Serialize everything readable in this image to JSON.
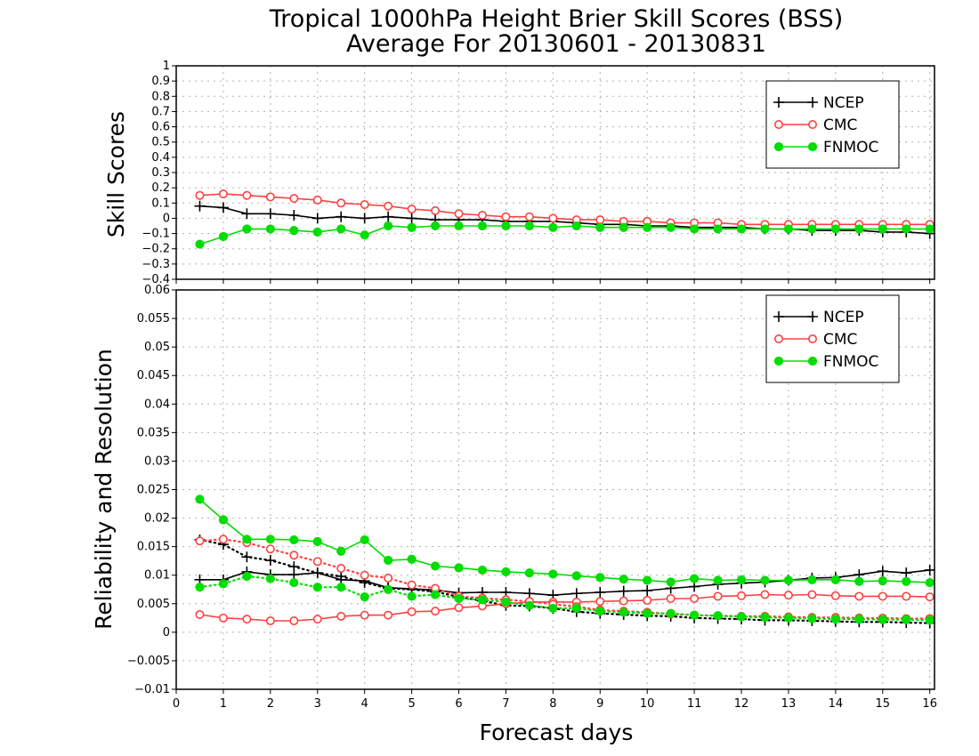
{
  "figure": {
    "title_line1": "Tropical 1000hPa Height Brier Skill Scores (BSS)",
    "title_line2": "Average For 20130601 - 20130831",
    "xlabel": "Forecast days"
  },
  "colors": {
    "NCEP": "#000000",
    "CMC": "#ff4040",
    "FNMOC": "#00dd00",
    "grid": "#b0b0b0"
  },
  "chart_data": [
    {
      "type": "line",
      "panel": "top",
      "ylabel": "Skill Scores",
      "xlim": [
        0,
        16.1
      ],
      "ylim": [
        -0.4,
        1
      ],
      "x_ticks": [
        0,
        1,
        2,
        3,
        4,
        5,
        6,
        7,
        8,
        9,
        10,
        11,
        12,
        13,
        14,
        15,
        16
      ],
      "y_ticks": [
        -0.4,
        -0.3,
        -0.2,
        -0.1,
        0,
        0.1,
        0.2,
        0.3,
        0.4,
        0.5,
        0.6,
        0.7,
        0.8,
        0.9,
        1
      ],
      "grid": true,
      "legend_position": "top-right",
      "x": [
        0.5,
        1,
        1.5,
        2,
        2.5,
        3,
        3.5,
        4,
        4.5,
        5,
        5.5,
        6,
        6.5,
        7,
        7.5,
        8,
        8.5,
        9,
        9.5,
        10,
        10.5,
        11,
        11.5,
        12,
        12.5,
        13,
        13.5,
        14,
        14.5,
        15,
        15.5,
        16
      ],
      "series": [
        {
          "name": "NCEP",
          "marker": "plus",
          "line": "solid",
          "values": [
            0.08,
            0.07,
            0.03,
            0.03,
            0.02,
            0.0,
            0.01,
            0.0,
            0.01,
            0.0,
            -0.01,
            -0.01,
            -0.01,
            -0.02,
            -0.02,
            -0.02,
            -0.03,
            -0.04,
            -0.04,
            -0.05,
            -0.05,
            -0.06,
            -0.06,
            -0.06,
            -0.07,
            -0.07,
            -0.08,
            -0.08,
            -0.08,
            -0.09,
            -0.09,
            -0.1
          ]
        },
        {
          "name": "CMC",
          "marker": "open-circle",
          "line": "solid",
          "values": [
            0.15,
            0.16,
            0.15,
            0.14,
            0.13,
            0.12,
            0.1,
            0.09,
            0.08,
            0.06,
            0.05,
            0.03,
            0.02,
            0.01,
            0.01,
            0.0,
            -0.01,
            -0.01,
            -0.02,
            -0.02,
            -0.03,
            -0.03,
            -0.03,
            -0.04,
            -0.04,
            -0.04,
            -0.04,
            -0.04,
            -0.04,
            -0.04,
            -0.04,
            -0.04
          ]
        },
        {
          "name": "FNMOC",
          "marker": "filled-circle",
          "line": "solid",
          "values": [
            -0.17,
            -0.12,
            -0.07,
            -0.07,
            -0.08,
            -0.09,
            -0.07,
            -0.11,
            -0.05,
            -0.06,
            -0.05,
            -0.05,
            -0.05,
            -0.05,
            -0.05,
            -0.06,
            -0.05,
            -0.06,
            -0.06,
            -0.06,
            -0.06,
            -0.07,
            -0.07,
            -0.07,
            -0.07,
            -0.07,
            -0.07,
            -0.07,
            -0.07,
            -0.07,
            -0.07,
            -0.07
          ]
        }
      ]
    },
    {
      "type": "line",
      "panel": "bottom",
      "ylabel": "Reliability and Resolution",
      "xlim": [
        0,
        16.1
      ],
      "ylim": [
        -0.01,
        0.06
      ],
      "x_ticks": [
        0,
        1,
        2,
        3,
        4,
        5,
        6,
        7,
        8,
        9,
        10,
        11,
        12,
        13,
        14,
        15,
        16
      ],
      "y_ticks": [
        -0.01,
        -0.005,
        0,
        0.005,
        0.01,
        0.015,
        0.02,
        0.025,
        0.03,
        0.035,
        0.04,
        0.045,
        0.05,
        0.055,
        0.06
      ],
      "grid": true,
      "legend_position": "top-right",
      "x": [
        0.5,
        1,
        1.5,
        2,
        2.5,
        3,
        3.5,
        4,
        4.5,
        5,
        5.5,
        6,
        6.5,
        7,
        7.5,
        8,
        8.5,
        9,
        9.5,
        10,
        10.5,
        11,
        11.5,
        12,
        12.5,
        13,
        13.5,
        14,
        14.5,
        15,
        15.5,
        16
      ],
      "series": [
        {
          "name": "NCEP",
          "marker": "plus",
          "line": "solid",
          "values": [
            0.0092,
            0.0092,
            0.0106,
            0.0101,
            0.0101,
            0.0104,
            0.0092,
            0.009,
            0.0078,
            0.0076,
            0.0074,
            0.0069,
            0.007,
            0.007,
            0.0068,
            0.0065,
            0.0068,
            0.007,
            0.0072,
            0.0073,
            0.0077,
            0.008,
            0.0084,
            0.0086,
            0.0088,
            0.0091,
            0.0095,
            0.0096,
            0.0101,
            0.0107,
            0.0104,
            0.0109
          ]
        },
        {
          "name": "NCEP",
          "marker": "plus",
          "line": "dotted",
          "values": [
            0.0162,
            0.0154,
            0.0132,
            0.0126,
            0.0115,
            0.0104,
            0.0098,
            0.0087,
            0.0077,
            0.0075,
            0.0071,
            0.0062,
            0.0055,
            0.0047,
            0.0046,
            0.0042,
            0.0036,
            0.0033,
            0.0031,
            0.0029,
            0.0028,
            0.0025,
            0.0024,
            0.0023,
            0.0021,
            0.0021,
            0.002,
            0.0019,
            0.0018,
            0.0018,
            0.0017,
            0.0016
          ]
        },
        {
          "name": "CMC",
          "marker": "open-circle",
          "line": "solid",
          "values": [
            0.0031,
            0.0025,
            0.0023,
            0.002,
            0.002,
            0.0023,
            0.0028,
            0.003,
            0.003,
            0.0036,
            0.0037,
            0.0043,
            0.0046,
            0.005,
            0.0053,
            0.0053,
            0.0053,
            0.0054,
            0.0055,
            0.0056,
            0.0059,
            0.0059,
            0.0063,
            0.0064,
            0.0066,
            0.0065,
            0.0066,
            0.0064,
            0.0063,
            0.0063,
            0.0063,
            0.0062
          ]
        },
        {
          "name": "CMC",
          "marker": "open-circle",
          "line": "dotted",
          "values": [
            0.016,
            0.0163,
            0.0157,
            0.0146,
            0.0135,
            0.0124,
            0.0112,
            0.01,
            0.0095,
            0.0083,
            0.0077,
            0.0063,
            0.006,
            0.0057,
            0.0054,
            0.0049,
            0.0045,
            0.0039,
            0.0037,
            0.0035,
            0.0032,
            0.003,
            0.0029,
            0.0028,
            0.0028,
            0.0027,
            0.0026,
            0.0026,
            0.0025,
            0.0025,
            0.0024,
            0.0024
          ]
        },
        {
          "name": "FNMOC",
          "marker": "filled-circle",
          "line": "solid",
          "values": [
            0.0233,
            0.0197,
            0.0163,
            0.0163,
            0.0162,
            0.0159,
            0.0142,
            0.0162,
            0.0126,
            0.0128,
            0.0116,
            0.0113,
            0.0109,
            0.0106,
            0.0104,
            0.0102,
            0.0099,
            0.0096,
            0.0093,
            0.0091,
            0.0088,
            0.0094,
            0.0091,
            0.0092,
            0.0091,
            0.0091,
            0.0092,
            0.0092,
            0.0089,
            0.009,
            0.0089,
            0.0087
          ]
        },
        {
          "name": "FNMOC",
          "marker": "filled-circle",
          "line": "dotted",
          "values": [
            0.0079,
            0.0085,
            0.0098,
            0.0094,
            0.0087,
            0.0079,
            0.0079,
            0.0062,
            0.0075,
            0.0063,
            0.0066,
            0.0059,
            0.0057,
            0.0053,
            0.0047,
            0.0042,
            0.0042,
            0.0037,
            0.0035,
            0.0033,
            0.0033,
            0.003,
            0.0029,
            0.0027,
            0.0026,
            0.0025,
            0.0024,
            0.0023,
            0.0023,
            0.0022,
            0.0022,
            0.0021
          ]
        }
      ]
    }
  ],
  "legend": {
    "entries": [
      "NCEP",
      "CMC",
      "FNMOC"
    ]
  }
}
